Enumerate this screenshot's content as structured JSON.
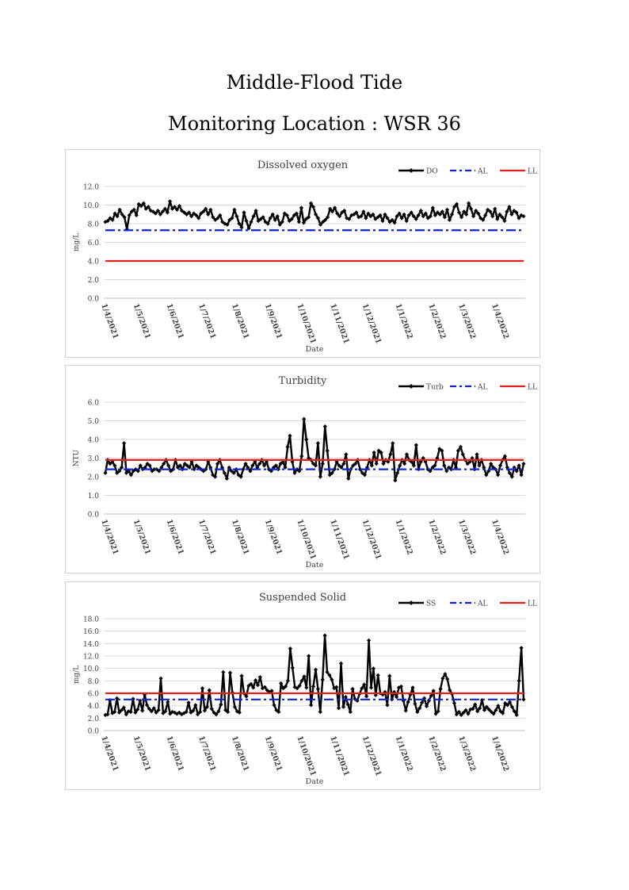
{
  "page": {
    "title": "Middle-Flood Tide",
    "subtitle": "Monitoring Location : WSR 36"
  },
  "colors": {
    "data": "#000000",
    "al": "#0b24d6",
    "ll": "#e61e1e",
    "grid": "#d9d9d9"
  },
  "chart_data": [
    {
      "type": "line",
      "title": "Dissolved oxygen",
      "xlabel": "Date",
      "ylabel": "mg/L",
      "ylim": [
        0,
        12
      ],
      "yticks": [
        "0.0",
        "2.0",
        "4.0",
        "6.0",
        "8.0",
        "10.0",
        "12.0"
      ],
      "xticks": [
        "1/4/2021",
        "1/5/2021",
        "1/6/2021",
        "1/7/2021",
        "1/8/2021",
        "1/9/2021",
        "1/10/2021",
        "1/11/2021",
        "1/12/2021",
        "1/1/2022",
        "1/2/2022",
        "1/3/2022",
        "1/4/2022"
      ],
      "x_start": "1/4/2021",
      "x_end": "30/4/2022",
      "grid": true,
      "legend": "top-right",
      "series": [
        {
          "name": "DO",
          "style": "line-marker",
          "values": [
            8.2,
            8.3,
            8.6,
            8.4,
            9.1,
            8.8,
            9.5,
            9.0,
            8.7,
            7.4,
            8.9,
            9.3,
            9.5,
            8.9,
            10.1,
            9.9,
            10.2,
            9.6,
            9.8,
            9.4,
            9.3,
            9.1,
            9.4,
            9.0,
            9.3,
            9.6,
            9.2,
            10.4,
            9.6,
            9.8,
            9.5,
            9.9,
            9.4,
            9.2,
            9.0,
            9.2,
            8.8,
            9.1,
            8.9,
            8.6,
            9.1,
            9.3,
            9.6,
            9.0,
            9.5,
            8.7,
            8.4,
            8.6,
            8.9,
            8.2,
            8.0,
            7.9,
            8.4,
            8.6,
            9.5,
            8.8,
            8.0,
            7.6,
            9.2,
            8.3,
            7.5,
            8.2,
            8.8,
            9.4,
            8.3,
            8.5,
            8.7,
            8.2,
            8.0,
            8.6,
            9.0,
            8.4,
            8.8,
            7.9,
            8.2,
            9.1,
            8.9,
            8.3,
            8.5,
            8.9,
            9.1,
            8.2,
            9.7,
            8.1,
            8.5,
            8.7,
            10.2,
            9.8,
            9.0,
            8.6,
            7.9,
            8.2,
            8.4,
            8.7,
            9.6,
            9.3,
            9.7,
            9.1,
            8.8,
            9.2,
            9.4,
            8.6,
            8.5,
            8.9,
            9.0,
            9.2,
            8.7,
            8.8,
            9.3,
            8.6,
            9.1,
            8.8,
            9.0,
            8.5,
            8.7,
            8.9,
            8.3,
            9.0,
            8.6,
            8.2,
            8.4,
            8.1,
            8.8,
            9.1,
            8.6,
            9.0,
            8.3,
            8.9,
            9.2,
            8.8,
            8.5,
            8.9,
            9.4,
            8.8,
            9.1,
            8.6,
            8.8,
            9.7,
            8.9,
            9.2,
            9.0,
            9.3,
            8.7,
            9.5,
            8.4,
            9.0,
            9.8,
            10.1,
            9.2,
            8.7,
            9.3,
            9.0,
            10.2,
            9.6,
            8.8,
            9.4,
            9.1,
            8.6,
            8.4,
            8.9,
            9.5,
            9.3,
            8.8,
            9.6,
            8.5,
            9.0,
            8.7,
            8.3,
            9.3,
            9.8,
            9.0,
            9.4,
            9.2,
            8.6,
            8.9,
            8.8
          ]
        },
        {
          "name": "AL",
          "style": "dashdot",
          "values": [
            7.3
          ]
        },
        {
          "name": "LL",
          "style": "solid",
          "values": [
            4.0
          ]
        }
      ]
    },
    {
      "type": "line",
      "title": "Turbidity",
      "xlabel": "Date",
      "ylabel": "NTU",
      "ylim": [
        0,
        6
      ],
      "yticks": [
        "0.0",
        "1.0",
        "2.0",
        "3.0",
        "4.0",
        "5.0",
        "6.0"
      ],
      "xticks": [
        "1/4/2021",
        "1/5/2021",
        "1/6/2021",
        "1/7/2021",
        "1/8/2021",
        "1/9/2021",
        "1/10/2021",
        "1/11/2021",
        "1/12/2021",
        "1/1/2022",
        "1/2/2022",
        "1/3/2022",
        "1/4/2022"
      ],
      "x_start": "1/4/2021",
      "x_end": "30/4/2022",
      "grid": true,
      "legend": "top-right",
      "series": [
        {
          "name": "Turb",
          "style": "line-marker",
          "values": [
            2.2,
            2.9,
            2.7,
            2.8,
            2.6,
            2.2,
            2.3,
            2.5,
            3.8,
            2.2,
            2.3,
            2.1,
            2.3,
            2.4,
            2.3,
            2.6,
            2.4,
            2.5,
            2.7,
            2.6,
            2.3,
            2.4,
            2.4,
            2.3,
            2.5,
            2.7,
            2.9,
            2.6,
            2.3,
            2.4,
            2.9,
            2.5,
            2.6,
            2.4,
            2.7,
            2.6,
            2.5,
            2.8,
            2.4,
            2.6,
            2.5,
            2.4,
            2.3,
            2.4,
            2.8,
            2.5,
            2.1,
            2.0,
            2.7,
            2.9,
            2.5,
            2.2,
            1.9,
            2.5,
            2.3,
            2.2,
            2.4,
            2.1,
            2.0,
            2.4,
            2.7,
            2.5,
            2.3,
            2.6,
            2.8,
            2.5,
            2.7,
            2.9,
            2.6,
            2.8,
            2.4,
            2.3,
            2.5,
            2.6,
            2.4,
            2.7,
            2.8,
            2.5,
            3.6,
            4.2,
            2.8,
            2.2,
            2.4,
            2.3,
            3.1,
            5.1,
            4.0,
            3.0,
            2.9,
            2.7,
            2.6,
            3.8,
            2.0,
            2.7,
            4.7,
            3.4,
            2.1,
            2.2,
            2.4,
            2.8,
            2.6,
            2.5,
            2.7,
            3.2,
            1.9,
            2.4,
            2.6,
            2.7,
            2.9,
            2.4,
            2.2,
            2.1,
            2.5,
            2.9,
            2.6,
            3.3,
            2.7,
            3.4,
            3.3,
            2.7,
            2.9,
            2.8,
            3.2,
            3.8,
            1.8,
            2.2,
            2.6,
            2.9,
            2.7,
            3.2,
            2.9,
            2.8,
            2.6,
            3.7,
            2.4,
            2.8,
            3.0,
            2.8,
            2.4,
            2.3,
            2.5,
            2.6,
            3.0,
            3.5,
            3.4,
            2.6,
            2.3,
            2.5,
            2.4,
            2.9,
            2.5,
            3.4,
            3.6,
            3.2,
            2.9,
            2.7,
            2.8,
            3.0,
            2.4,
            3.2,
            2.6,
            2.9,
            2.5,
            2.1,
            2.3,
            2.7,
            2.5,
            2.4,
            2.1,
            2.6,
            2.9,
            3.1,
            2.5,
            2.2,
            2.0,
            2.5,
            2.3,
            2.6,
            2.1,
            2.7
          ]
        },
        {
          "name": "AL",
          "style": "dashdot",
          "values": [
            2.4
          ]
        },
        {
          "name": "LL",
          "style": "solid",
          "values": [
            2.9
          ]
        }
      ]
    },
    {
      "type": "line",
      "title": "Suspended Solid",
      "xlabel": "Date",
      "ylabel": "mg/L",
      "ylim": [
        0,
        18
      ],
      "yticks": [
        "0.0",
        "2.0",
        "4.0",
        "6.0",
        "8.0",
        "10.0",
        "12.0",
        "14.0",
        "16.0",
        "18.0"
      ],
      "xticks": [
        "1/4/2021",
        "1/5/2021",
        "1/6/2021",
        "1/7/2021",
        "1/8/2021",
        "1/9/2021",
        "1/10/2021",
        "1/11/2021",
        "1/12/2021",
        "1/1/2022",
        "1/2/2022",
        "1/3/2022",
        "1/4/2022"
      ],
      "x_start": "1/4/2021",
      "x_end": "30/4/2022",
      "grid": true,
      "legend": "top-right",
      "series": [
        {
          "name": "SS",
          "style": "line-marker",
          "values": [
            2.5,
            2.6,
            4.9,
            2.8,
            3.0,
            5.2,
            2.9,
            3.3,
            3.7,
            2.6,
            3.1,
            3.0,
            5.1,
            2.9,
            3.4,
            4.8,
            3.2,
            5.8,
            4.1,
            3.5,
            3.1,
            3.6,
            2.9,
            3.3,
            8.4,
            2.8,
            3.1,
            4.6,
            2.7,
            3.0,
            2.9,
            2.7,
            2.9,
            2.6,
            2.8,
            3.0,
            4.5,
            2.9,
            3.2,
            4.1,
            2.6,
            3.0,
            6.8,
            3.2,
            3.8,
            6.5,
            3.5,
            2.9,
            2.6,
            3.1,
            4.2,
            9.4,
            3.3,
            3.0,
            9.3,
            6.1,
            3.8,
            3.1,
            2.9,
            8.8,
            6.0,
            5.5,
            7.2,
            7.5,
            6.9,
            8.1,
            7.3,
            8.6,
            6.8,
            7.0,
            6.5,
            6.2,
            6.4,
            4.1,
            3.3,
            3.0,
            7.6,
            6.8,
            7.1,
            8.0,
            13.2,
            10.1,
            7.0,
            6.8,
            7.2,
            8.0,
            8.7,
            6.9,
            12.0,
            4.1,
            7.1,
            9.8,
            6.7,
            3.0,
            8.2,
            15.3,
            9.4,
            8.9,
            8.2,
            6.8,
            7.0,
            3.6,
            10.8,
            3.8,
            5.4,
            4.2,
            3.0,
            6.7,
            5.1,
            4.8,
            5.9,
            6.8,
            7.4,
            5.5,
            14.5,
            6.9,
            10.0,
            5.7,
            8.9,
            6.0,
            5.8,
            6.2,
            4.1,
            8.8,
            5.0,
            6.2,
            5.4,
            6.9,
            7.1,
            4.8,
            3.2,
            4.6,
            5.8,
            6.9,
            4.3,
            3.0,
            3.6,
            4.5,
            5.2,
            3.9,
            4.8,
            5.6,
            6.4,
            2.7,
            3.1,
            6.7,
            8.4,
            9.1,
            8.3,
            6.5,
            5.9,
            4.4,
            2.6,
            3.0,
            2.5,
            2.9,
            3.3,
            2.7,
            3.4,
            3.5,
            4.2,
            3.1,
            3.6,
            4.9,
            3.3,
            3.8,
            3.4,
            3.0,
            2.7,
            3.3,
            4.0,
            3.1,
            2.8,
            4.4,
            4.1,
            4.6,
            3.8,
            3.1,
            2.5,
            8.0,
            13.3,
            5.0
          ]
        },
        {
          "name": "AL",
          "style": "dashdot",
          "values": [
            5.0
          ]
        },
        {
          "name": "LL",
          "style": "solid",
          "values": [
            6.0
          ]
        }
      ]
    }
  ]
}
